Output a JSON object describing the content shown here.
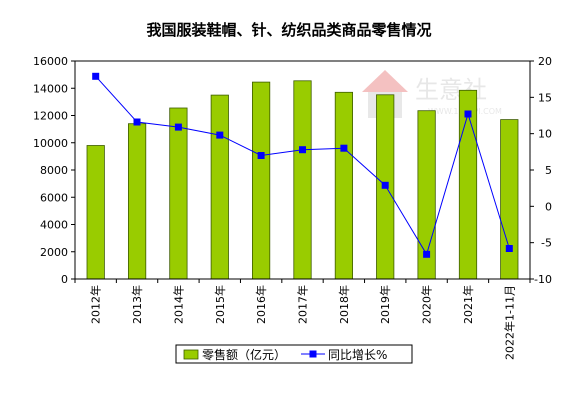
{
  "chart_data": {
    "type": "bar+line",
    "title": "我国服装鞋帽、针、纺织品类商品零售情况",
    "categories": [
      "2012年",
      "2013年",
      "2014年",
      "2015年",
      "2016年",
      "2017年",
      "2018年",
      "2019年",
      "2020年",
      "2021年",
      "2022年1-11月"
    ],
    "series": [
      {
        "name": "零售额（亿元）",
        "type": "bar",
        "axis": "left",
        "color": "#99cc00",
        "values": [
          9800,
          11400,
          12550,
          13500,
          14450,
          14550,
          13700,
          13520,
          12350,
          13850,
          11700
        ]
      },
      {
        "name": "同比增长%",
        "type": "line",
        "axis": "right",
        "color": "#0000ff",
        "values": [
          17.9,
          11.6,
          10.9,
          9.8,
          7.0,
          7.8,
          8.0,
          2.9,
          -6.6,
          12.7,
          -5.8
        ]
      }
    ],
    "left_axis": {
      "min": 0,
      "max": 16000,
      "ticks": [
        0,
        2000,
        4000,
        6000,
        8000,
        10000,
        12000,
        14000,
        16000
      ]
    },
    "right_axis": {
      "min": -10,
      "max": 20,
      "ticks": [
        -10,
        -5,
        0,
        5,
        10,
        15,
        20
      ]
    },
    "grid": false,
    "legend_position": "bottom",
    "watermark": {
      "text": "生意社",
      "url": "WWW.100PPI.COM"
    }
  }
}
